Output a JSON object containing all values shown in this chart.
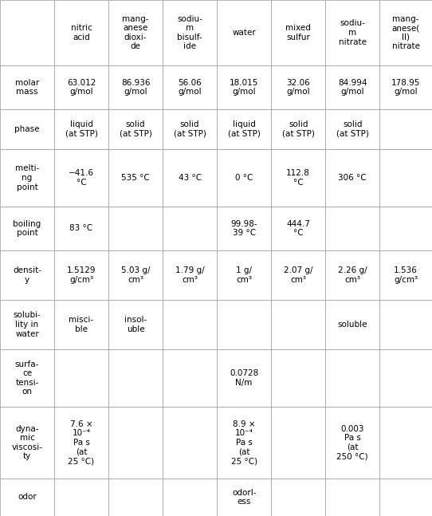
{
  "col_headers": [
    "",
    "nitric\nacid",
    "mang-\nanese\ndioxi-\nde",
    "sodiu-\nm\nbisulf-\nide",
    "water",
    "mixed\nsulfur",
    "sodiu-\nm\nnitrate",
    "mang-\nanese(\nII)\nnitrate"
  ],
  "rows": [
    {
      "label": "molar\nmass",
      "values": [
        "63.012\ng/mol",
        "86.936\ng/mol",
        "56.06\ng/mol",
        "18.015\ng/mol",
        "32.06\ng/mol",
        "84.994\ng/mol",
        "178.95\ng/mol"
      ]
    },
    {
      "label": "phase",
      "values": [
        "liquid\n(at STP)",
        "solid\n(at STP)",
        "solid\n(at STP)",
        "liquid\n(at STP)",
        "solid\n(at STP)",
        "solid\n(at STP)",
        ""
      ]
    },
    {
      "label": "melti-\nng\npoint",
      "values": [
        "−41.6\n°C",
        "535 °C",
        "43 °C",
        "0 °C",
        "112.8\n°C",
        "306 °C",
        ""
      ]
    },
    {
      "label": "boiling\npoint",
      "values": [
        "83 °C",
        "",
        "",
        "99.98-\n39 °C",
        "444.7\n°C",
        "",
        ""
      ]
    },
    {
      "label": "densit-\ny",
      "values": [
        "1.5129\ng/cm³",
        "5.03 g/\ncm³",
        "1.79 g/\ncm³",
        "1 g/\ncm³",
        "2.07 g/\ncm³",
        "2.26 g/\ncm³",
        "1.536\ng/cm³"
      ]
    },
    {
      "label": "solubi-\nlity in\nwater",
      "values": [
        "misci-\nble",
        "insol-\nuble",
        "",
        "",
        "",
        "soluble",
        ""
      ]
    },
    {
      "label": "surfa-\nce\ntensi-\non",
      "values": [
        "",
        "",
        "",
        "0.0728\nN/m",
        "",
        "",
        ""
      ]
    },
    {
      "label": "dyna-\nmic\nviscosi-\nty",
      "values": [
        "7.6 ×\n10⁻⁴\nPa s\n(at\n25 °C)",
        "",
        "",
        "8.9 ×\n10⁻⁴\nPa s\n(at\n25 °C)",
        "",
        "0.003\nPa s\n(at\n250 °C)",
        ""
      ]
    },
    {
      "label": "odor",
      "values": [
        "",
        "",
        "",
        "odorl-\ness",
        "",
        "",
        ""
      ]
    }
  ],
  "border_color": "#999999",
  "text_color": "#000000",
  "bg_color": "#ffffff",
  "fontsize": 7.5,
  "figwidth": 5.42,
  "figheight": 6.47,
  "dpi": 100
}
